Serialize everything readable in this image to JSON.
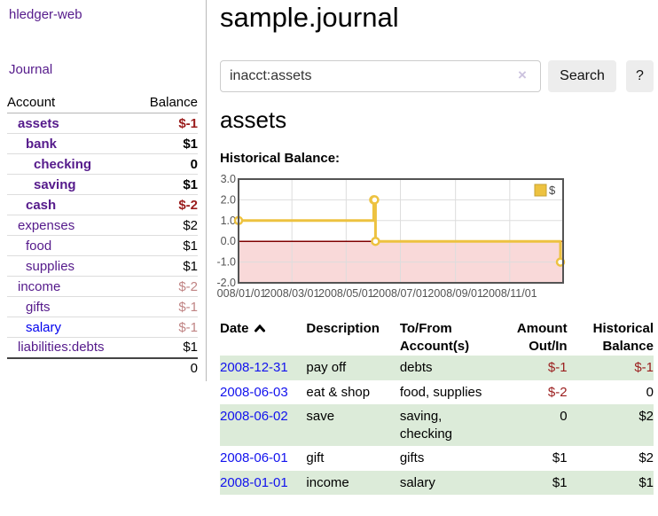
{
  "app": {
    "brand": "hledger-web"
  },
  "sidebar": {
    "nav_journal": "Journal",
    "accounts_table": {
      "headers": {
        "account": "Account",
        "balance": "Balance"
      },
      "rows": [
        {
          "name": "assets",
          "level": 1,
          "bold": true,
          "link_color": "purple",
          "balance": "$-1",
          "balance_color": "neg"
        },
        {
          "name": "bank",
          "level": 2,
          "bold": true,
          "link_color": "purple",
          "balance": "$1",
          "balance_color": "normal"
        },
        {
          "name": "checking",
          "level": 3,
          "bold": true,
          "link_color": "purple",
          "balance": "0",
          "balance_color": "normal"
        },
        {
          "name": "saving",
          "level": 3,
          "bold": true,
          "link_color": "purple",
          "balance": "$1",
          "balance_color": "normal"
        },
        {
          "name": "cash",
          "level": 2,
          "bold": true,
          "link_color": "purple",
          "balance": "$-2",
          "balance_color": "neg"
        },
        {
          "name": "expenses",
          "level": 1,
          "bold": false,
          "link_color": "purple",
          "balance": "$2",
          "balance_color": "normal"
        },
        {
          "name": "food",
          "level": 2,
          "bold": false,
          "link_color": "purple",
          "balance": "$1",
          "balance_color": "normal"
        },
        {
          "name": "supplies",
          "level": 2,
          "bold": false,
          "link_color": "purple",
          "balance": "$1",
          "balance_color": "normal"
        },
        {
          "name": "income",
          "level": 1,
          "bold": false,
          "link_color": "purple",
          "balance": "$-2",
          "balance_color": "negfade"
        },
        {
          "name": "gifts",
          "level": 2,
          "bold": false,
          "link_color": "purple",
          "balance": "$-1",
          "balance_color": "negfade"
        },
        {
          "name": "salary",
          "level": 2,
          "bold": false,
          "link_color": "blue",
          "balance": "$-1",
          "balance_color": "negfade"
        },
        {
          "name": "liabilities:debts",
          "level": 1,
          "bold": false,
          "link_color": "purple",
          "balance": "$1",
          "balance_color": "normal"
        }
      ],
      "total": "0"
    }
  },
  "header": {
    "title": "sample.journal"
  },
  "search": {
    "value": "inacct:assets",
    "clear_icon": "×",
    "search_label": "Search",
    "help_label": "?"
  },
  "account_page": {
    "heading": "assets",
    "chart_label": "Historical Balance:"
  },
  "chart_data": {
    "type": "line",
    "title": "Historical Balance",
    "step": true,
    "series": [
      {
        "name": "$",
        "color": "#EDC240",
        "points": [
          [
            "2008-01-01",
            1
          ],
          [
            "2008-06-01",
            2
          ],
          [
            "2008-06-02",
            2
          ],
          [
            "2008-06-03",
            0
          ],
          [
            "2008-12-31",
            -1
          ]
        ]
      }
    ],
    "x_range": [
      "2008-01-01",
      "2008-12-31"
    ],
    "y_range": [
      -2,
      3
    ],
    "y_ticks": [
      -2,
      -1,
      0,
      1,
      2,
      3
    ],
    "x_tick_labels": [
      "2008/01/01",
      "2008/03/01",
      "2008/05/01",
      "2008/07/01",
      "2008/09/01",
      "2008/11/01"
    ],
    "grid": true,
    "legend_position": "top-right",
    "colors": {
      "line": "#EDC240",
      "marker_fill": "#ffffff",
      "negative_region": "#f9d9d9",
      "zero_line": "#800000",
      "plot_border": "#545454",
      "gridline": "#dddddd",
      "tick_text": "#545454",
      "legend_box_border": "#c5a233"
    }
  },
  "register_table": {
    "headers": [
      "Date",
      "Description",
      "To/From Account(s)",
      "Amount Out/In",
      "Historical Balance"
    ],
    "sort_icon": "chevron-up",
    "rows": [
      {
        "date": "2008-12-31",
        "description": "pay off",
        "accounts": "debts",
        "amount": "$-1",
        "amount_negative": true,
        "balance": "$-1",
        "balance_negative": true,
        "shaded": true
      },
      {
        "date": "2008-06-03",
        "description": "eat & shop",
        "accounts": "food, supplies",
        "amount": "$-2",
        "amount_negative": true,
        "balance": "0",
        "balance_negative": false,
        "shaded": false
      },
      {
        "date": "2008-06-02",
        "description": "save",
        "accounts": "saving, checking",
        "amount": "0",
        "amount_negative": false,
        "balance": "$2",
        "balance_negative": false,
        "shaded": true
      },
      {
        "date": "2008-06-01",
        "description": "gift",
        "accounts": "gifts",
        "amount": "$1",
        "amount_negative": false,
        "balance": "$2",
        "balance_negative": false,
        "shaded": false
      },
      {
        "date": "2008-01-01",
        "description": "income",
        "accounts": "salary",
        "amount": "$1",
        "amount_negative": false,
        "balance": "$1",
        "balance_negative": false,
        "shaded": true
      }
    ]
  },
  "colors": {
    "link_purple": "#551a8b",
    "link_blue": "#0000ee",
    "date_link_blue": "#1212ee",
    "negative_strong": "#9a1c1c",
    "negative_faded": "#c08484",
    "shaded_row_green": "#dcebd9",
    "button_bg": "#ededed"
  }
}
